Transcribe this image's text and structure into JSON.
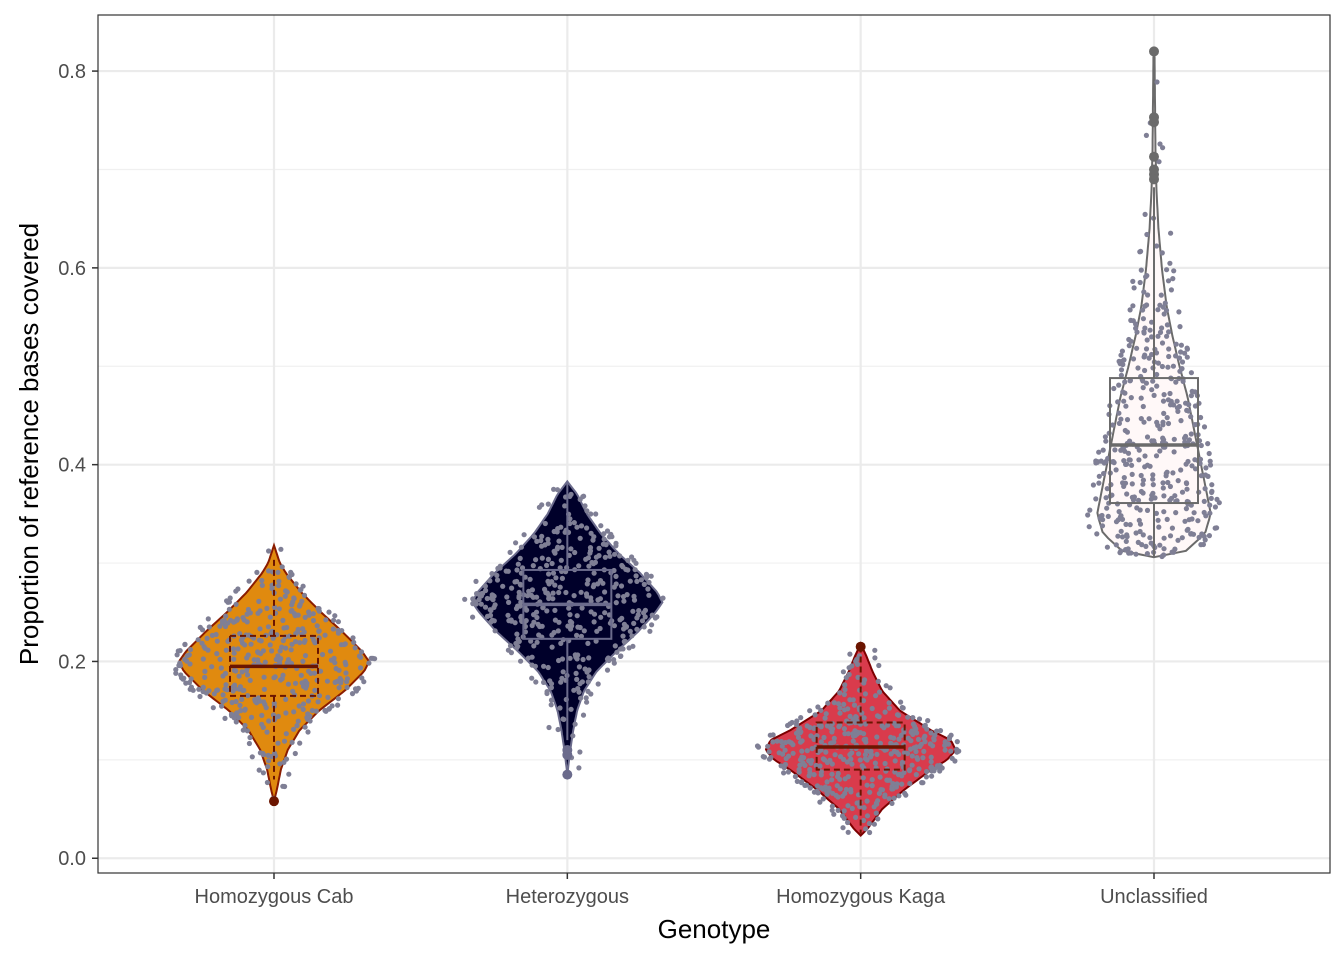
{
  "chart_data": {
    "type": "violin",
    "xlabel": "Genotype",
    "ylabel": "Proportion of reference bases covered",
    "ylim": [
      -0.015,
      0.857
    ],
    "y_ticks": [
      0.0,
      0.2,
      0.4,
      0.6,
      0.8
    ],
    "y_tick_labels": [
      "0.0",
      "0.2",
      "0.4",
      "0.6",
      "0.8"
    ],
    "grid": true,
    "categories": [
      "Homozygous Cab",
      "Heterozygous",
      "Homozygous Kaga",
      "Unclassified"
    ],
    "series": [
      {
        "category": "Homozygous Cab",
        "fill": "#e08a0f",
        "stroke": "#8a1c00",
        "box_color": "#6b1500",
        "box_linestyle": "dashed",
        "min": 0.058,
        "max": 0.318,
        "density": [
          [
            0.058,
            0.0
          ],
          [
            0.07,
            0.03
          ],
          [
            0.09,
            0.07
          ],
          [
            0.11,
            0.14
          ],
          [
            0.13,
            0.26
          ],
          [
            0.15,
            0.46
          ],
          [
            0.17,
            0.72
          ],
          [
            0.19,
            0.92
          ],
          [
            0.2,
            0.97
          ],
          [
            0.21,
            0.9
          ],
          [
            0.23,
            0.7
          ],
          [
            0.25,
            0.48
          ],
          [
            0.27,
            0.28
          ],
          [
            0.29,
            0.12
          ],
          [
            0.3,
            0.06
          ],
          [
            0.318,
            0.0
          ]
        ],
        "box": {
          "q1": 0.165,
          "median": 0.195,
          "q3": 0.226,
          "whisker_low": 0.08,
          "whisker_high": 0.305
        },
        "outliers": [
          0.058
        ],
        "n_points": 430
      },
      {
        "category": "Heterozygous",
        "fill": "#00002a",
        "stroke": "#6b6b8c",
        "box_color": "#6b6b8c",
        "box_linestyle": "solid",
        "min": 0.085,
        "max": 0.383,
        "density": [
          [
            0.085,
            0.0
          ],
          [
            0.11,
            0.03
          ],
          [
            0.13,
            0.06
          ],
          [
            0.15,
            0.1
          ],
          [
            0.17,
            0.17
          ],
          [
            0.19,
            0.3
          ],
          [
            0.21,
            0.5
          ],
          [
            0.23,
            0.72
          ],
          [
            0.25,
            0.9
          ],
          [
            0.26,
            0.97
          ],
          [
            0.27,
            0.92
          ],
          [
            0.29,
            0.74
          ],
          [
            0.31,
            0.52
          ],
          [
            0.33,
            0.34
          ],
          [
            0.35,
            0.2
          ],
          [
            0.37,
            0.1
          ],
          [
            0.383,
            0.0
          ]
        ],
        "box": {
          "q1": 0.223,
          "median": 0.258,
          "q3": 0.293,
          "whisker_low": 0.12,
          "whisker_high": 0.383
        },
        "outliers": [
          0.085,
          0.105,
          0.11
        ],
        "n_points": 430
      },
      {
        "category": "Homozygous Kaga",
        "fill": "#d93b4c",
        "stroke": "#7d0000",
        "box_color": "#6b1500",
        "box_linestyle": "dashed",
        "min": 0.023,
        "max": 0.218,
        "density": [
          [
            0.023,
            0.0
          ],
          [
            0.03,
            0.07
          ],
          [
            0.05,
            0.22
          ],
          [
            0.07,
            0.45
          ],
          [
            0.09,
            0.72
          ],
          [
            0.1,
            0.88
          ],
          [
            0.11,
            0.97
          ],
          [
            0.12,
            0.92
          ],
          [
            0.13,
            0.72
          ],
          [
            0.15,
            0.4
          ],
          [
            0.17,
            0.22
          ],
          [
            0.19,
            0.12
          ],
          [
            0.205,
            0.06
          ],
          [
            0.218,
            0.0
          ]
        ],
        "box": {
          "q1": 0.09,
          "median": 0.113,
          "q3": 0.138,
          "whisker_low": 0.025,
          "whisker_high": 0.213
        },
        "outliers": [
          0.215
        ],
        "n_points": 430
      },
      {
        "category": "Unclassified",
        "fill": "#fff8f8",
        "stroke": "#6b6b6b",
        "box_color": "#6b6b6b",
        "box_linestyle": "solid",
        "min": 0.306,
        "max": 0.82,
        "density": [
          [
            0.306,
            0.0
          ],
          [
            0.31,
            0.3
          ],
          [
            0.33,
            0.52
          ],
          [
            0.35,
            0.58
          ],
          [
            0.38,
            0.52
          ],
          [
            0.41,
            0.46
          ],
          [
            0.44,
            0.4
          ],
          [
            0.47,
            0.34
          ],
          [
            0.5,
            0.26
          ],
          [
            0.53,
            0.19
          ],
          [
            0.56,
            0.13
          ],
          [
            0.6,
            0.08
          ],
          [
            0.64,
            0.045
          ],
          [
            0.68,
            0.025
          ],
          [
            0.72,
            0.015
          ],
          [
            0.82,
            0.005
          ]
        ],
        "box": {
          "q1": 0.361,
          "median": 0.42,
          "q3": 0.488,
          "whisker_low": 0.306,
          "whisker_high": 0.682
        },
        "outliers": [
          0.69,
          0.695,
          0.7,
          0.713,
          0.748,
          0.753,
          0.82
        ],
        "n_points": 430
      }
    ],
    "point_color": "#7f7f95"
  }
}
